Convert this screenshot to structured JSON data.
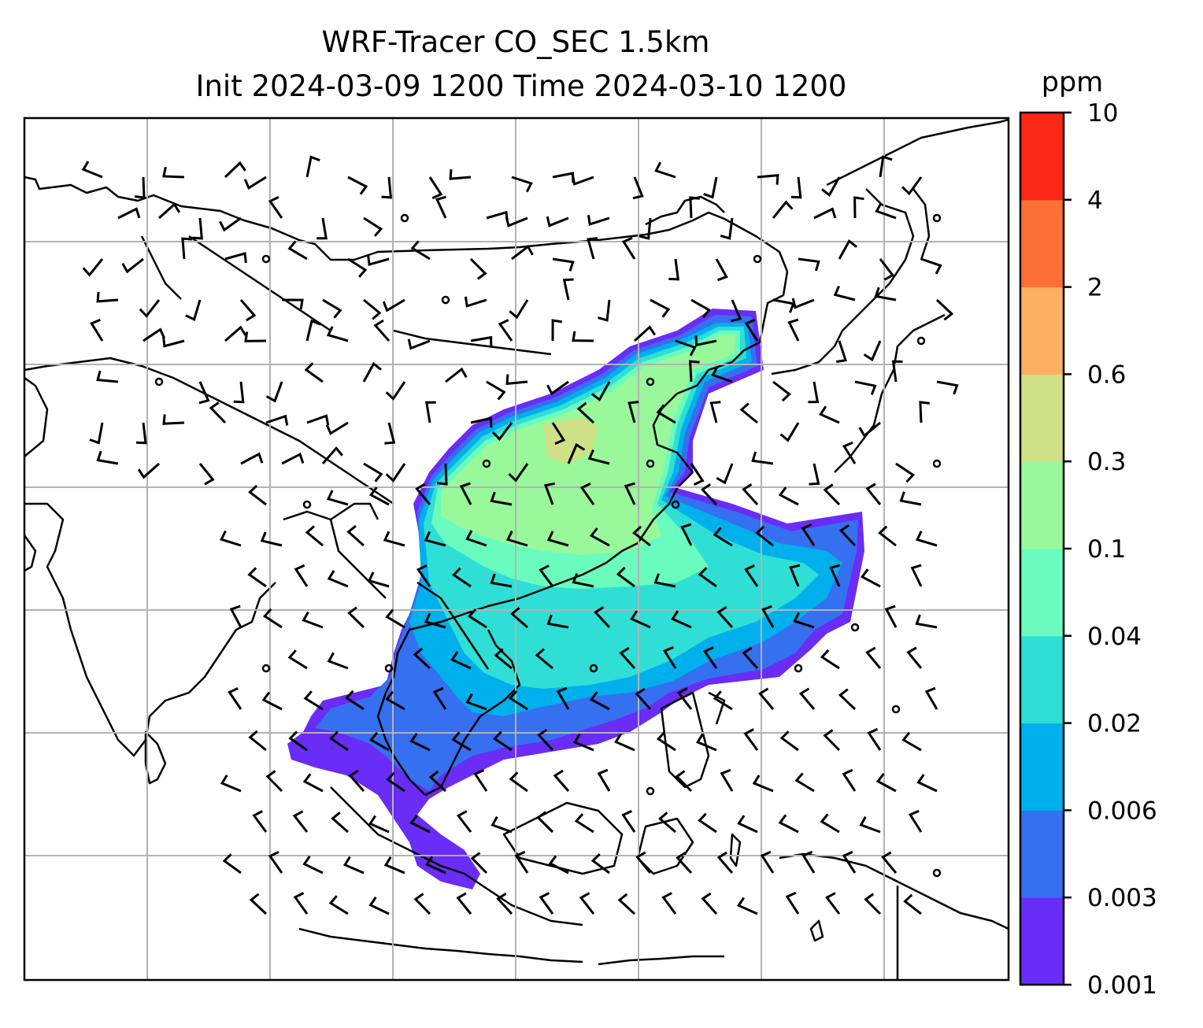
{
  "title_line1": "WRF-Tracer CO_SEC 1.5km",
  "title_line2": "Init 2024-03-09 1200 Time 2024-03-10 1200",
  "colorbar": {
    "unit": "ppm",
    "levels": [
      "0.001",
      "0.003",
      "0.006",
      "0.02",
      "0.04",
      "0.1",
      "0.3",
      "0.6",
      "2",
      "4",
      "10"
    ],
    "colors": [
      "#6a2cf7",
      "#3570f0",
      "#00b0ec",
      "#2fdfd6",
      "#6afcbf",
      "#98f89a",
      "#cfe087",
      "#fdb062",
      "#fd7035",
      "#fb2716"
    ]
  },
  "map": {
    "gridlines": true,
    "features": [
      "coastlines",
      "country-borders",
      "wind-barbs",
      "CO tracer concentration field"
    ]
  }
}
